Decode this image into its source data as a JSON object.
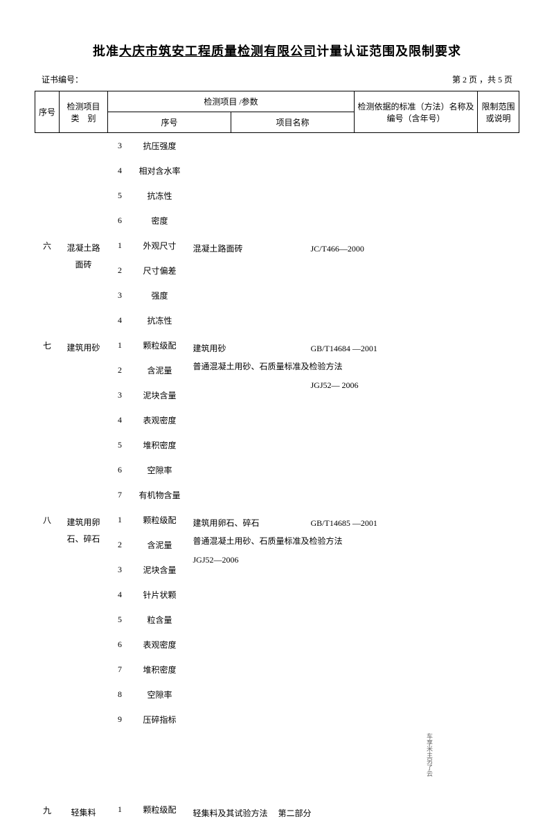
{
  "title_prefix": "批准",
  "title_company": "大庆市筑安工程质量检测有限公司",
  "title_suffix": "计量认证范围及限制要求",
  "cert_label": "证书编号：",
  "page_info": "第 2 页 ，共 5 页",
  "headers": {
    "seq": "序号",
    "category_l1": "检测项目",
    "category_l2": "类　别",
    "param_group": "检测项目 /参数",
    "param_num": "序号",
    "param_name": "项目名称",
    "standard": "检测依据的标准（方法）名称及编号（含年号）",
    "limit_l1": "限制范围",
    "limit_l2": "或说明"
  },
  "preRows": [
    {
      "num": "3",
      "name": "抗压强度"
    },
    {
      "num": "4",
      "name": "相对含水率"
    },
    {
      "num": "5",
      "name": "抗冻性"
    },
    {
      "num": "6",
      "name": "密度"
    }
  ],
  "groups": [
    {
      "seq": "六",
      "category": "混凝土路面砖",
      "params": [
        {
          "num": "1",
          "name": "外观尺寸"
        },
        {
          "num": "2",
          "name": "尺寸偏差"
        },
        {
          "num": "3",
          "name": "强度"
        },
        {
          "num": "4",
          "name": "抗冻性"
        }
      ],
      "standards": [
        {
          "name": "混凝土路面砖",
          "code": "JC/T466―2000"
        }
      ]
    },
    {
      "seq": "七",
      "category": "建筑用砂",
      "params": [
        {
          "num": "1",
          "name": "颗粒级配"
        },
        {
          "num": "2",
          "name": "含泥量"
        },
        {
          "num": "3",
          "name": "泥块含量"
        },
        {
          "num": "4",
          "name": "表观密度"
        },
        {
          "num": "5",
          "name": "堆积密度"
        },
        {
          "num": "6",
          "name": "空隙率"
        },
        {
          "num": "7",
          "name": "有机物含量"
        }
      ],
      "standards": [
        {
          "name": "建筑用砂",
          "code": "GB/T14684 ―2001"
        },
        {
          "name": "普通混凝土用砂、石质量标准及检验方法",
          "code": ""
        },
        {
          "name": "",
          "code": "JGJ52― 2006"
        }
      ]
    },
    {
      "seq": "八",
      "category": "建筑用卵石、碎石",
      "params": [
        {
          "num": "1",
          "name": "颗粒级配"
        },
        {
          "num": "2",
          "name": "含泥量"
        },
        {
          "num": "3",
          "name": "泥块含量"
        },
        {
          "num": "4",
          "name": "针片状颗"
        },
        {
          "num": "5",
          "name": "粒含量"
        },
        {
          "num": "6",
          "name": "表观密度"
        },
        {
          "num": "7",
          "name": "堆积密度"
        },
        {
          "num": "8",
          "name": "空隙率"
        },
        {
          "num": "9",
          "name": "压碎指标"
        }
      ],
      "standards": [
        {
          "name": "建筑用卵石、碎石",
          "code": "GB/T14685 ―2001"
        },
        {
          "name": "普通混凝土用砂、石质量标准及检验方法",
          "code": ""
        },
        {
          "name": "JGJ52―2006",
          "code": ""
        }
      ]
    }
  ],
  "lastRow": {
    "seq": "九",
    "category": "轻集料",
    "num": "1",
    "name": "颗粒级配",
    "standard": "轻集料及其试验方法　 第二部分"
  },
  "sideNote": "车享米主另了云"
}
